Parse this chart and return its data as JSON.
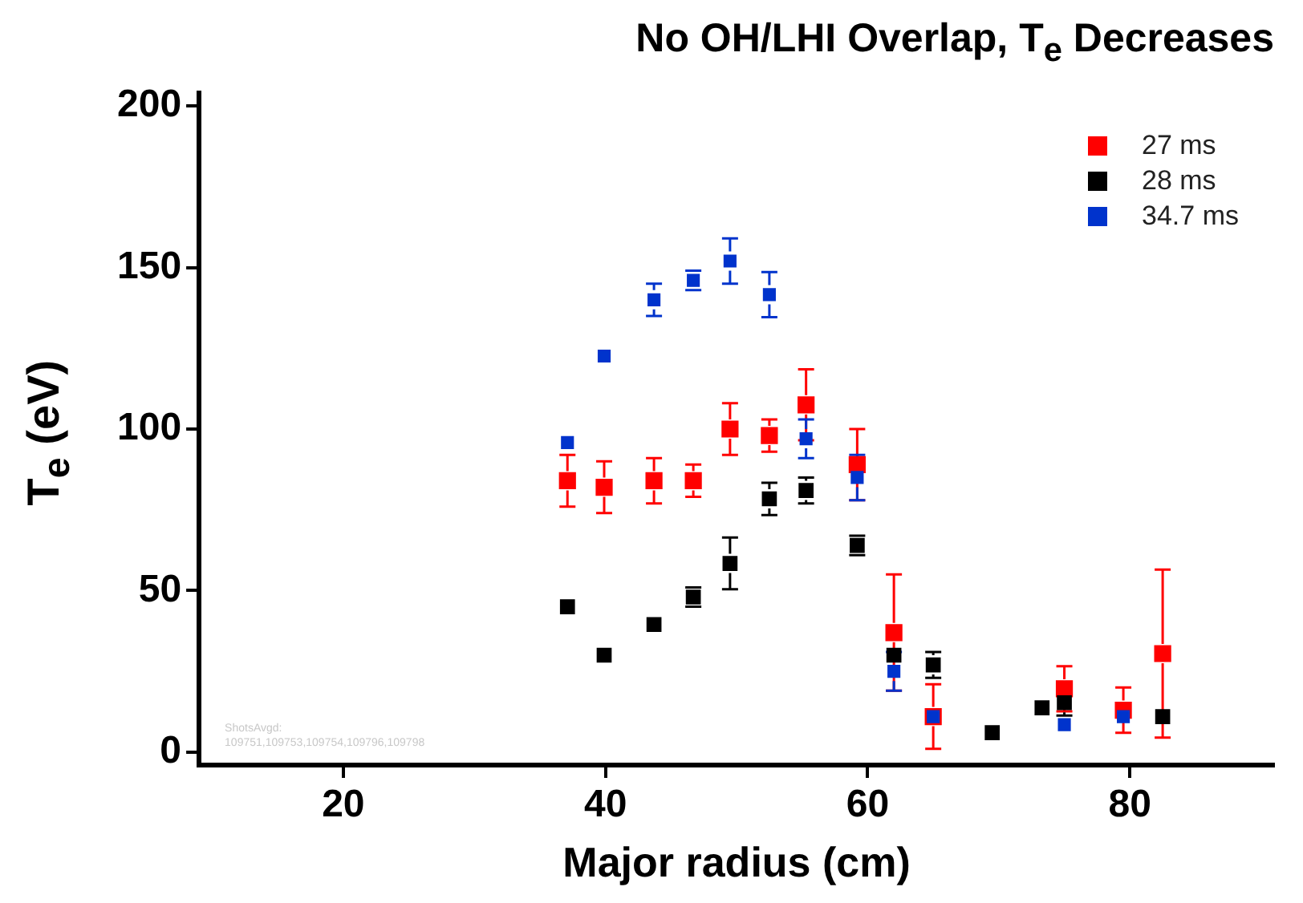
{
  "chart_data": {
    "type": "scatter",
    "title": "No OH/LHI Overlap, T$_{e}$ Decreases",
    "xlabel": "Major radius (cm)",
    "ylabel": "T$_{e}$ (eV)",
    "annotations": [
      "ShotsAvgd:",
      "109751,109753,109754,109796,109798"
    ],
    "xlim": [
      9,
      91
    ],
    "xticks": [
      20,
      40,
      60,
      80
    ],
    "ylim": [
      -4,
      204
    ],
    "yticks": [
      0,
      50,
      100,
      150,
      200
    ],
    "grid": false,
    "legend": "top right",
    "marker": "square",
    "series": [
      {
        "name": "27 ms",
        "color": "#ff0000",
        "x": [
          37.1,
          39.9,
          43.7,
          46.7,
          49.5,
          52.5,
          55.3,
          59.2,
          62,
          65,
          75,
          79.5,
          82.5
        ],
        "values": [
          84,
          82,
          84,
          84,
          100,
          98,
          107.5,
          89,
          37,
          11,
          19.6,
          13,
          30.5
        ],
        "errors": [
          8,
          8,
          7,
          5,
          8,
          5,
          11,
          11,
          18,
          10,
          7,
          7,
          26
        ]
      },
      {
        "name": "28 ms",
        "color": "#000000",
        "x": [
          37.1,
          39.9,
          43.7,
          46.7,
          49.5,
          52.5,
          55.3,
          59.2,
          62,
          65,
          69.5,
          73.3,
          75,
          82.5
        ],
        "values": [
          45,
          30,
          39.5,
          48,
          58.4,
          78.4,
          81,
          64,
          30,
          27,
          6,
          13.7,
          15.3,
          11
        ],
        "errors": [
          null,
          null,
          null,
          3,
          8,
          5,
          4,
          3,
          null,
          4,
          null,
          null,
          4,
          null
        ]
      },
      {
        "name": "34.7 ms",
        "color": "#0033cc",
        "x": [
          37.1,
          39.9,
          43.7,
          46.7,
          49.5,
          52.5,
          55.3,
          59.2,
          62,
          65,
          75,
          79.5
        ],
        "values": [
          95.8,
          122.6,
          140,
          146,
          152,
          141.6,
          97,
          85,
          25,
          11,
          8.5,
          11
        ],
        "errors": [
          null,
          null,
          5,
          3,
          7,
          7,
          6,
          7,
          6,
          null,
          null,
          null
        ]
      }
    ]
  }
}
